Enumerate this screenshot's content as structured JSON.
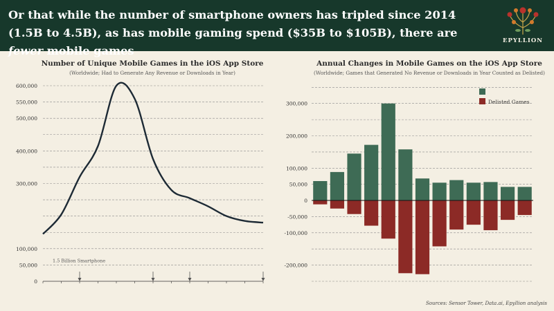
{
  "header": {
    "headline_part1": "Or that while the number of smartphone owners has tripled since 2014 (1.5B to 4.5B), as has mobile gaming spend ($35B to $105B), there are ",
    "headline_emph": "fewer",
    "headline_part2": " mobile games",
    "logo_text": "EPYLLION"
  },
  "source": "Sources: Sensor Tower, Data.ai, Epyllion analysis",
  "colors": {
    "header_bg": "#17382b",
    "line": "#1d2a35",
    "positive": "#3e6b55",
    "negative": "#8c2a26",
    "background": "#f4efe3"
  },
  "chart_data": [
    {
      "type": "line",
      "title": "Number of Unique Mobile Games in the iOS App Store",
      "subtitle": "(Worldwide; Had to Generate Any Revenue or Downloads in Year)",
      "ytick_labels": [
        "0",
        "50,000",
        "100,000",
        "300,000",
        "400,000",
        "500,000",
        "550,000",
        "600,000"
      ],
      "y_gridlines": [
        50000,
        100000,
        150000,
        200000,
        250000,
        300000,
        350000,
        400000,
        450000,
        500000,
        550000,
        600000
      ],
      "ylim": [
        0,
        600000
      ],
      "x": [
        0,
        1,
        2,
        3,
        4,
        5,
        6,
        7,
        8,
        9,
        10,
        11,
        12
      ],
      "values": [
        145000,
        205000,
        320000,
        415000,
        600000,
        560000,
        375000,
        280000,
        255000,
        230000,
        200000,
        185000,
        180000
      ],
      "annotation": "1.5 Billion Smartphone",
      "arrow_positions": [
        2,
        6,
        8,
        12
      ]
    },
    {
      "type": "bar",
      "title": "Annual Changes in Mobile Games on the iOS App Store",
      "subtitle": "(Worldwide; Games that Generated No Revenue or Downloads in Year Counted as Delisted)",
      "ytick_labels": [
        "-200,000",
        "-100,000",
        "-50,000",
        "0",
        "50,000",
        "100,000",
        "200,000",
        "300,000"
      ],
      "y_gridlines": [
        -250000,
        -200000,
        -150000,
        -100000,
        -50000,
        0,
        50000,
        100000,
        150000,
        200000,
        250000,
        300000,
        350000
      ],
      "ylim": [
        -250000,
        355000
      ],
      "legend": [
        "",
        "Delisted Games"
      ],
      "series": [
        {
          "name": "",
          "values": [
            60000,
            88000,
            145000,
            172000,
            300000,
            158000,
            68000,
            55000,
            63000,
            55000,
            57000,
            42000,
            42000
          ]
        },
        {
          "name": "Delisted Games",
          "values": [
            -12000,
            -25000,
            -42000,
            -78000,
            -118000,
            -225000,
            -228000,
            -142000,
            -90000,
            -75000,
            -92000,
            -60000,
            -45000
          ]
        }
      ]
    }
  ]
}
